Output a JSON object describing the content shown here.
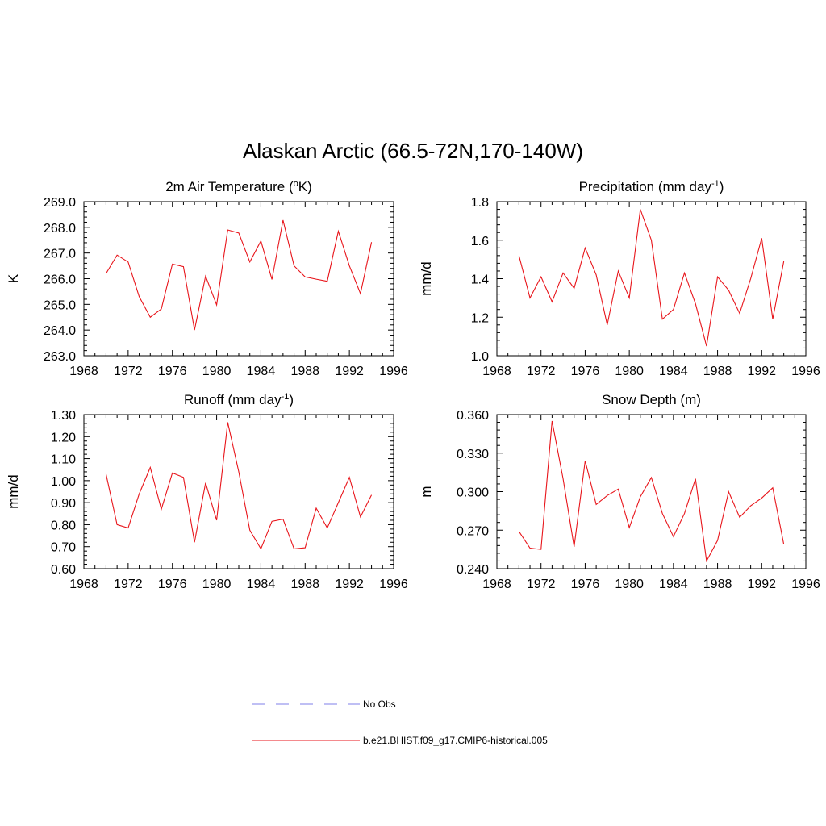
{
  "figure": {
    "title": "Alaskan Arctic (66.5-72N,170-140W)"
  },
  "colors": {
    "model_line": "#e8151b",
    "obs_line": "#9999ee",
    "axis": "#000000"
  },
  "legend": [
    {
      "label": "No Obs",
      "style": "dashed"
    },
    {
      "label": "b.e21.BHIST.f09_g17.CMIP6-historical.005",
      "style": "solid"
    }
  ],
  "chart_data": [
    {
      "type": "line",
      "title_base": "2m Air Temperature (",
      "title_sup_pre": "o",
      "title_post": "K)",
      "ylabel": "K",
      "xlim": [
        1968,
        1996
      ],
      "xticks": [
        "1968",
        "1972",
        "1976",
        "1980",
        "1984",
        "1988",
        "1992",
        "1996"
      ],
      "ylim": [
        263.0,
        269.0
      ],
      "yticks": [
        "263.0",
        "264.0",
        "265.0",
        "266.0",
        "267.0",
        "268.0",
        "269.0"
      ],
      "series": [
        {
          "x": [
            1970,
            1971,
            1972,
            1973,
            1974,
            1975,
            1976,
            1977,
            1978,
            1979,
            1980,
            1981,
            1982,
            1983,
            1984,
            1985,
            1986,
            1987,
            1988,
            1989,
            1990,
            1991,
            1992,
            1993,
            1994
          ],
          "y": [
            266.2,
            266.92,
            266.65,
            265.3,
            264.5,
            264.82,
            266.57,
            266.47,
            264.0,
            266.1,
            264.98,
            267.9,
            267.78,
            266.65,
            267.47,
            265.97,
            268.28,
            266.5,
            266.07,
            265.98,
            265.9,
            267.85,
            266.5,
            265.42,
            267.42
          ]
        }
      ]
    },
    {
      "type": "line",
      "title_base": "Precipitation (mm day",
      "title_sup_post": "-1",
      "title_post": ")",
      "ylabel": "mm/d",
      "xlim": [
        1968,
        1996
      ],
      "xticks": [
        "1968",
        "1972",
        "1976",
        "1980",
        "1984",
        "1988",
        "1992",
        "1996"
      ],
      "ylim": [
        1.0,
        1.8
      ],
      "yticks": [
        "1.0",
        "1.2",
        "1.4",
        "1.6",
        "1.8"
      ],
      "series": [
        {
          "x": [
            1970,
            1971,
            1972,
            1973,
            1974,
            1975,
            1976,
            1977,
            1978,
            1979,
            1980,
            1981,
            1982,
            1983,
            1984,
            1985,
            1986,
            1987,
            1988,
            1989,
            1990,
            1991,
            1992,
            1993,
            1994
          ],
          "y": [
            1.52,
            1.3,
            1.41,
            1.28,
            1.43,
            1.35,
            1.56,
            1.42,
            1.16,
            1.44,
            1.3,
            1.76,
            1.6,
            1.19,
            1.24,
            1.43,
            1.27,
            1.05,
            1.41,
            1.34,
            1.22,
            1.4,
            1.61,
            1.19,
            1.49
          ]
        }
      ]
    },
    {
      "type": "line",
      "title_base": "Runoff (mm day",
      "title_sup_post": "-1",
      "title_post": ")",
      "ylabel": "mm/d",
      "xlim": [
        1968,
        1996
      ],
      "xticks": [
        "1968",
        "1972",
        "1976",
        "1980",
        "1984",
        "1988",
        "1992",
        "1996"
      ],
      "ylim": [
        0.6,
        1.3
      ],
      "yticks": [
        "0.60",
        "0.70",
        "0.80",
        "0.90",
        "1.00",
        "1.10",
        "1.20",
        "1.30"
      ],
      "series": [
        {
          "x": [
            1970,
            1971,
            1972,
            1973,
            1974,
            1975,
            1976,
            1977,
            1978,
            1979,
            1980,
            1981,
            1982,
            1983,
            1984,
            1985,
            1986,
            1987,
            1988,
            1989,
            1990,
            1991,
            1992,
            1993,
            1994
          ],
          "y": [
            1.03,
            0.8,
            0.785,
            0.94,
            1.06,
            0.87,
            1.035,
            1.015,
            0.72,
            0.99,
            0.82,
            1.265,
            1.04,
            0.775,
            0.69,
            0.815,
            0.825,
            0.69,
            0.695,
            0.875,
            0.785,
            0.9,
            1.015,
            0.835,
            0.935
          ]
        }
      ]
    },
    {
      "type": "line",
      "title_base": "Snow Depth (m)",
      "ylabel": "m",
      "xlim": [
        1968,
        1996
      ],
      "xticks": [
        "1968",
        "1972",
        "1976",
        "1980",
        "1984",
        "1988",
        "1992",
        "1996"
      ],
      "ylim": [
        0.24,
        0.36
      ],
      "yticks": [
        "0.240",
        "0.270",
        "0.300",
        "0.330",
        "0.360"
      ],
      "series": [
        {
          "x": [
            1970,
            1971,
            1972,
            1973,
            1974,
            1975,
            1976,
            1977,
            1978,
            1979,
            1980,
            1981,
            1982,
            1983,
            1984,
            1985,
            1986,
            1987,
            1988,
            1989,
            1990,
            1991,
            1992,
            1993,
            1994
          ],
          "y": [
            0.269,
            0.256,
            0.255,
            0.355,
            0.31,
            0.257,
            0.324,
            0.29,
            0.297,
            0.302,
            0.272,
            0.296,
            0.311,
            0.283,
            0.265,
            0.283,
            0.31,
            0.246,
            0.262,
            0.3,
            0.28,
            0.289,
            0.295,
            0.303,
            0.259
          ]
        }
      ]
    }
  ]
}
